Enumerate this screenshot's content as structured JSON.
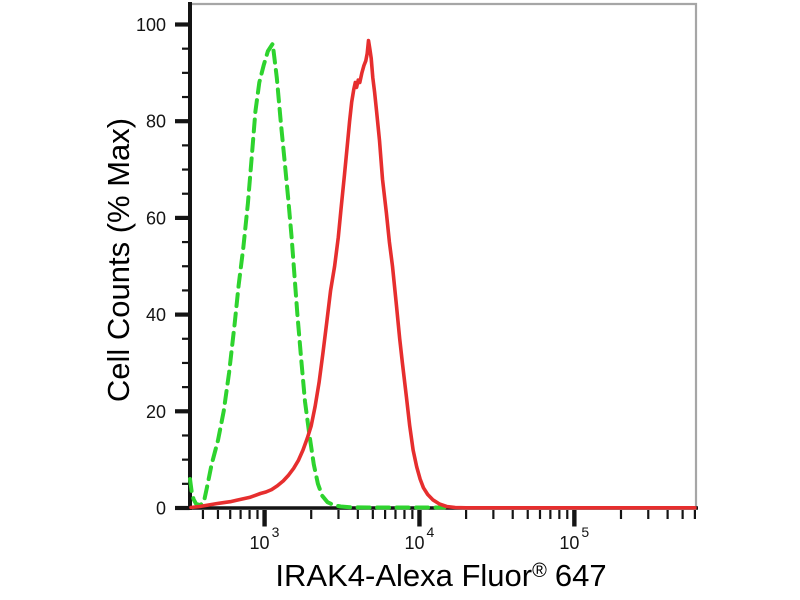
{
  "figure": {
    "background": "#ffffff",
    "description_hint": "flow cytometry histogram overlay, two curves, no title, no legend"
  },
  "chart_data": {
    "type": "line",
    "subtype": "flow-cytometry-histogram",
    "title": "",
    "xlabel": "IRAK4-Alexa Fluor® 647",
    "xlabel_parts": {
      "main": "IRAK4-Alexa Fluor",
      "registered_mark": "®",
      "suffix": "647"
    },
    "ylabel": "Cell Counts (% Max)",
    "x_scale": "log10",
    "xlim": [
      330,
      610000
    ],
    "ylim": [
      0,
      100
    ],
    "grid": false,
    "legend_position": "none",
    "x_major_ticks": [
      {
        "value": 1000,
        "label_base": "10",
        "label_exponent": "3"
      },
      {
        "value": 10000,
        "label_base": "10",
        "label_exponent": "4"
      },
      {
        "value": 100000,
        "label_base": "10",
        "label_exponent": "5"
      }
    ],
    "x_minor_ticks_per_decade": [
      2,
      3,
      4,
      5,
      6,
      7,
      8,
      9
    ],
    "y_major_ticks": [
      0,
      20,
      40,
      60,
      80,
      100
    ],
    "y_minor_tick_step": 5,
    "colors": {
      "axis": "#141414",
      "tick_label": "#141414",
      "plot_border": "#a6a6a6",
      "green_curve": "#2ed32e",
      "red_curve": "#e62e2e",
      "background": "#ffffff"
    },
    "series": [
      {
        "id": "green-dashed-control",
        "color": "#2ed32e",
        "line_style": "dashed",
        "line_width": 4,
        "peak": {
          "x": 1100,
          "y_percent": 96
        },
        "points": [
          [
            330,
            6
          ],
          [
            338,
            3.5
          ],
          [
            348,
            1.8
          ],
          [
            362,
            0.8
          ],
          [
            385,
            0.6
          ],
          [
            405,
            1.2
          ],
          [
            423,
            4
          ],
          [
            455,
            9
          ],
          [
            500,
            14
          ],
          [
            545,
            20
          ],
          [
            590,
            28
          ],
          [
            640,
            38
          ],
          [
            680,
            46
          ],
          [
            730,
            54
          ],
          [
            780,
            63
          ],
          [
            828,
            73
          ],
          [
            872,
            82
          ],
          [
            925,
            88
          ],
          [
            985,
            91.5
          ],
          [
            1050,
            94.5
          ],
          [
            1128,
            96
          ],
          [
            1200,
            89
          ],
          [
            1270,
            80
          ],
          [
            1345,
            72
          ],
          [
            1420,
            64
          ],
          [
            1495,
            56
          ],
          [
            1560,
            48
          ],
          [
            1630,
            40
          ],
          [
            1720,
            31
          ],
          [
            1825,
            22
          ],
          [
            1950,
            15
          ],
          [
            2080,
            9
          ],
          [
            2210,
            5
          ],
          [
            2360,
            2.5
          ],
          [
            2550,
            1.2
          ],
          [
            2800,
            0.6
          ],
          [
            3100,
            0.3
          ],
          [
            3600,
            0.15
          ],
          [
            5000,
            0.1
          ],
          [
            8000,
            0.1
          ],
          [
            12000,
            0.1
          ],
          [
            14500,
            0.1
          ]
        ]
      },
      {
        "id": "red-solid-sample",
        "color": "#e62e2e",
        "line_style": "solid",
        "line_width": 3.6,
        "peak": {
          "x": 4700,
          "y_percent": 97
        },
        "points": [
          [
            335,
            0.1
          ],
          [
            380,
            0.3
          ],
          [
            430,
            0.6
          ],
          [
            490,
            0.9
          ],
          [
            540,
            1.1
          ],
          [
            600,
            1.3
          ],
          [
            660,
            1.6
          ],
          [
            730,
            1.9
          ],
          [
            800,
            2.2
          ],
          [
            870,
            2.6
          ],
          [
            940,
            3
          ],
          [
            1020,
            3.3
          ],
          [
            1110,
            3.8
          ],
          [
            1210,
            4.6
          ],
          [
            1320,
            5.6
          ],
          [
            1430,
            6.8
          ],
          [
            1540,
            8.2
          ],
          [
            1650,
            9.8
          ],
          [
            1770,
            12
          ],
          [
            1890,
            14.5
          ],
          [
            2000,
            17
          ],
          [
            2120,
            21
          ],
          [
            2250,
            26
          ],
          [
            2380,
            32
          ],
          [
            2520,
            38.5
          ],
          [
            2670,
            45
          ],
          [
            2830,
            50
          ],
          [
            2990,
            56
          ],
          [
            3120,
            62
          ],
          [
            3280,
            69
          ],
          [
            3420,
            75
          ],
          [
            3540,
            80
          ],
          [
            3650,
            84
          ],
          [
            3760,
            86.5
          ],
          [
            3850,
            88
          ],
          [
            3930,
            87
          ],
          [
            4020,
            88.5
          ],
          [
            4120,
            88
          ],
          [
            4250,
            90
          ],
          [
            4380,
            91.5
          ],
          [
            4500,
            92.5
          ],
          [
            4600,
            94
          ],
          [
            4690,
            96.7
          ],
          [
            4780,
            95
          ],
          [
            4880,
            93
          ],
          [
            5000,
            89
          ],
          [
            5130,
            86
          ],
          [
            5290,
            82
          ],
          [
            5520,
            76
          ],
          [
            5770,
            68
          ],
          [
            6120,
            61
          ],
          [
            6400,
            55
          ],
          [
            6700,
            50
          ],
          [
            7100,
            42
          ],
          [
            7450,
            35
          ],
          [
            7760,
            30
          ],
          [
            8240,
            23
          ],
          [
            8650,
            17
          ],
          [
            9100,
            12
          ],
          [
            9600,
            8.5
          ],
          [
            10100,
            6
          ],
          [
            10600,
            4.2
          ],
          [
            11300,
            2.8
          ],
          [
            12200,
            1.7
          ],
          [
            13500,
            0.8
          ],
          [
            15000,
            0.3
          ],
          [
            17000,
            0.1
          ],
          [
            20000,
            0.05
          ],
          [
            30000,
            0.05
          ],
          [
            60000,
            0.05
          ],
          [
            120000,
            0.05
          ],
          [
            300000,
            0.05
          ],
          [
            600000,
            0.05
          ]
        ]
      }
    ]
  }
}
